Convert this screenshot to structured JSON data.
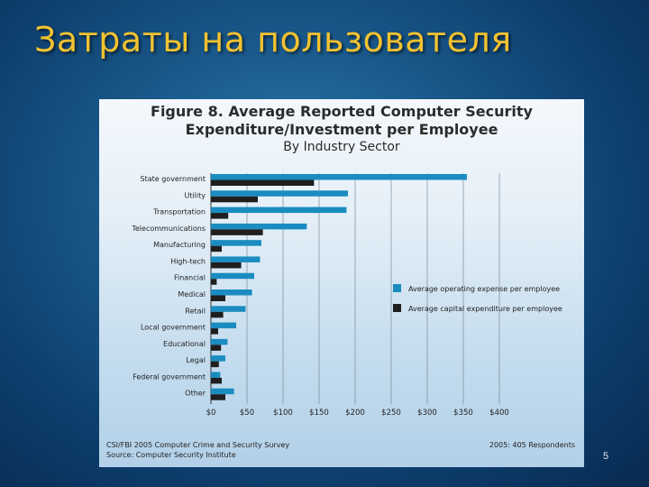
{
  "slide": {
    "title": "Затраты на пользователя",
    "page_number": "5"
  },
  "figure": {
    "title_line1": "Figure 8. Average Reported Computer Security",
    "title_line2": "Expenditure/Investment per Employee",
    "title_line3": "By Industry Sector",
    "footer_source1": "CSI/FBI 2005 Computer Crime and Security Survey",
    "footer_source2": "Source: Computer Security Institute",
    "footer_respondents": "2005: 405 Respondents"
  },
  "chart_data": {
    "type": "bar",
    "orientation": "horizontal",
    "title": "Figure 8. Average Reported Computer Security Expenditure/Investment per Employee",
    "subtitle": "By Industry Sector",
    "categories": [
      "State government",
      "Utility",
      "Transportation",
      "Telecommunications",
      "Manufacturing",
      "High-tech",
      "Financial",
      "Medical",
      "Retail",
      "Local government",
      "Educational",
      "Legal",
      "Federal government",
      "Other"
    ],
    "series": [
      {
        "name": "Average operating expense per employee",
        "color": "#1a8cc0",
        "values": [
          355,
          190,
          188,
          133,
          70,
          68,
          60,
          57,
          48,
          35,
          23,
          20,
          13,
          32
        ]
      },
      {
        "name": "Average capital expenditure per employee",
        "color": "#1f1f1f",
        "values": [
          143,
          65,
          24,
          72,
          15,
          42,
          8,
          20,
          17,
          10,
          14,
          11,
          15,
          20
        ]
      }
    ],
    "xlim": [
      0,
      400
    ],
    "xticks": [
      "$0",
      "$50",
      "$100",
      "$150",
      "$200",
      "$250",
      "$300",
      "$350",
      "$400"
    ],
    "grid": "vertical",
    "legend": "right"
  }
}
